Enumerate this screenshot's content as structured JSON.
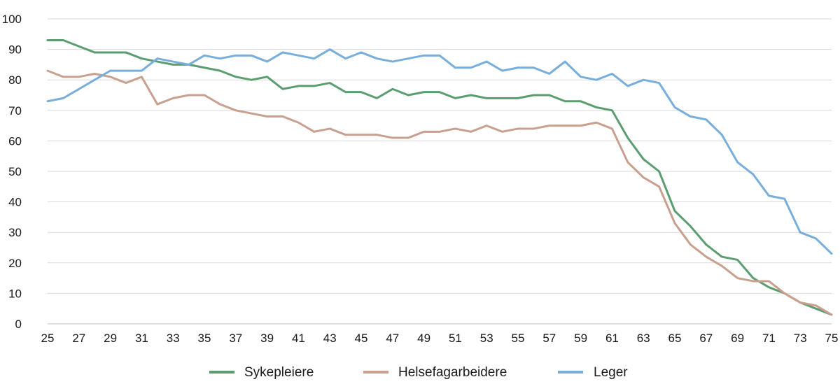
{
  "chart_data": {
    "type": "line",
    "title": "",
    "xlabel": "",
    "ylabel": "",
    "x": [
      25,
      26,
      27,
      28,
      29,
      30,
      31,
      32,
      33,
      34,
      35,
      36,
      37,
      38,
      39,
      40,
      41,
      42,
      43,
      44,
      45,
      46,
      47,
      48,
      49,
      50,
      51,
      52,
      53,
      54,
      55,
      56,
      57,
      58,
      59,
      60,
      61,
      62,
      63,
      64,
      65,
      66,
      67,
      68,
      69,
      70,
      71,
      72,
      73,
      74,
      75
    ],
    "x_tick_labels": [
      "25",
      "27",
      "29",
      "31",
      "33",
      "35",
      "37",
      "39",
      "41",
      "43",
      "45",
      "47",
      "49",
      "51",
      "53",
      "55",
      "57",
      "59",
      "61",
      "63",
      "65",
      "67",
      "69",
      "71",
      "73",
      "75"
    ],
    "y_tick_labels": [
      "0",
      "10",
      "20",
      "30",
      "40",
      "50",
      "60",
      "70",
      "80",
      "90",
      "100"
    ],
    "xlim": [
      25,
      75
    ],
    "ylim": [
      0,
      100
    ],
    "grid": "horizontal",
    "legend_position": "bottom",
    "series": [
      {
        "name": "Sykepleiere",
        "color": "#5a9e6f",
        "values": [
          93,
          93,
          91,
          89,
          89,
          89,
          87,
          86,
          85,
          85,
          84,
          83,
          81,
          80,
          81,
          77,
          78,
          78,
          79,
          76,
          76,
          74,
          77,
          75,
          76,
          76,
          74,
          75,
          74,
          74,
          74,
          75,
          75,
          73,
          73,
          71,
          70,
          61,
          54,
          50,
          37,
          32,
          26,
          22,
          21,
          15,
          12,
          10,
          7,
          5,
          3
        ]
      },
      {
        "name": "Helsefagarbeidere",
        "color": "#c9a08f",
        "values": [
          83,
          81,
          81,
          82,
          81,
          79,
          81,
          72,
          74,
          75,
          75,
          72,
          70,
          69,
          68,
          68,
          66,
          63,
          64,
          62,
          62,
          62,
          61,
          61,
          63,
          63,
          64,
          63,
          65,
          63,
          64,
          64,
          65,
          65,
          65,
          66,
          64,
          53,
          48,
          45,
          33,
          26,
          22,
          19,
          15,
          14,
          14,
          10,
          7,
          6,
          3
        ]
      },
      {
        "name": "Leger",
        "color": "#78aedb",
        "values": [
          73,
          74,
          77,
          80,
          83,
          83,
          83,
          87,
          86,
          85,
          88,
          87,
          88,
          88,
          86,
          89,
          88,
          87,
          90,
          87,
          89,
          87,
          86,
          87,
          88,
          88,
          84,
          84,
          86,
          83,
          84,
          84,
          82,
          86,
          81,
          80,
          82,
          78,
          80,
          79,
          71,
          68,
          67,
          62,
          53,
          49,
          42,
          41,
          30,
          28,
          23
        ]
      }
    ]
  }
}
